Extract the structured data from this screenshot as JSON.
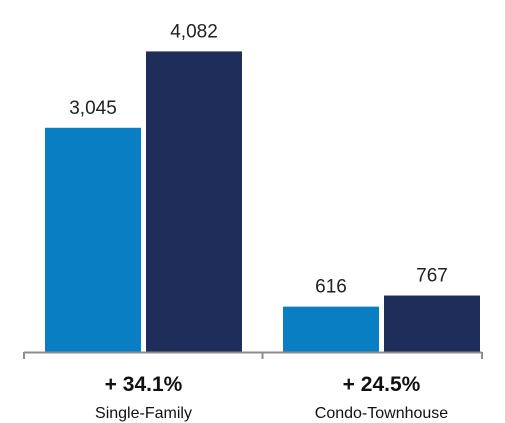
{
  "chart_data": {
    "type": "bar",
    "categories": [
      "Single-Family",
      "Condo-Townhouse"
    ],
    "series": [
      {
        "values": [
          3045,
          616
        ],
        "color": "#0a7ec2"
      },
      {
        "values": [
          4082,
          767
        ],
        "color": "#1f2d5a"
      }
    ],
    "value_labels": [
      [
        "3,045",
        "616"
      ],
      [
        "4,082",
        "767"
      ]
    ],
    "change_labels": [
      "+ 34.1%",
      "+ 24.5%"
    ],
    "ylim": [
      0,
      4400
    ],
    "grid": false,
    "legend": "none",
    "axis_color": "#8c8c8c"
  }
}
